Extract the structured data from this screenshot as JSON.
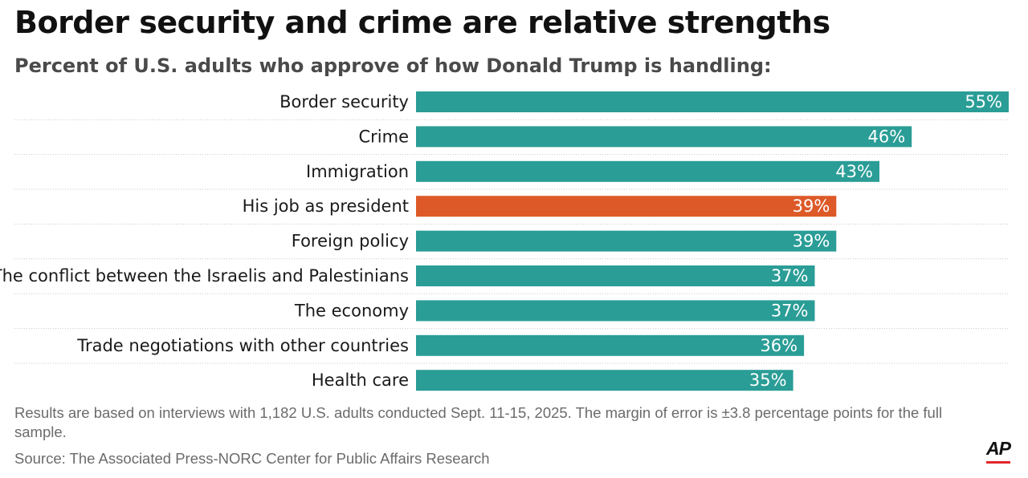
{
  "title": "Border security and crime are relative strengths",
  "subtitle": "Percent of U.S. adults who approve of how Donald Trump is handling:",
  "note": "Results are based on interviews with 1,182 U.S. adults conducted Sept. 11-15, 2025. The margin of error is ±3.8 percentage points for the full sample.",
  "source": "Source: The Associated Press-NORC Center for Public Affairs Research",
  "logo": "AP",
  "colors": {
    "bar": "#2a9d96",
    "highlight": "#dd5a28",
    "divider": "#c8c8c8",
    "logo_bar": "#e2262a"
  },
  "chart_data": {
    "type": "bar",
    "orientation": "horizontal",
    "title": "Border security and crime are relative strengths",
    "subtitle": "Percent of U.S. adults who approve of how Donald Trump is handling:",
    "categories": [
      "Border security",
      "Crime",
      "Immigration",
      "His job as president",
      "Foreign policy",
      "The conflict between the Israelis and Palestinians",
      "The economy",
      "Trade negotiations with other countries",
      "Health care"
    ],
    "values": [
      55,
      46,
      43,
      39,
      39,
      37,
      37,
      36,
      35
    ],
    "value_labels": [
      "55%",
      "46%",
      "43%",
      "39%",
      "39%",
      "37%",
      "37%",
      "36%",
      "35%"
    ],
    "highlight": [
      false,
      false,
      false,
      true,
      false,
      false,
      false,
      false,
      false
    ],
    "xlim": [
      0,
      55
    ],
    "xlabel": "",
    "ylabel": ""
  }
}
